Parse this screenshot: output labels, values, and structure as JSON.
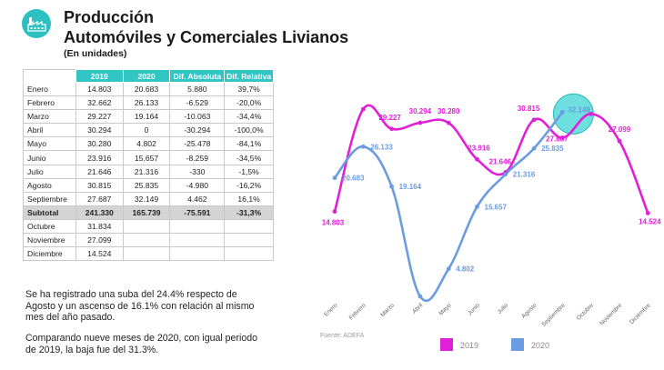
{
  "header": {
    "title_line1": "Producción",
    "title_line2": "Automóviles y Comerciales Livianos",
    "subtitle": "(En unidades)",
    "logo_icon": "factory-icon",
    "accent_color": "#2cc1c1"
  },
  "table": {
    "columns": [
      "",
      "2019",
      "2020",
      "Dif. Absoluta",
      "Dif. Relativa"
    ],
    "rows": [
      [
        "Enero",
        "14.803",
        "20.683",
        "5.880",
        "39,7%"
      ],
      [
        "Febrero",
        "32.662",
        "26.133",
        "-6.529",
        "-20,0%"
      ],
      [
        "Marzo",
        "29.227",
        "19.164",
        "-10.063",
        "-34,4%"
      ],
      [
        "Abril",
        "30.294",
        "0",
        "-30.294",
        "-100,0%"
      ],
      [
        "Mayo",
        "30.280",
        "4.802",
        "-25.478",
        "-84,1%"
      ],
      [
        "Junio",
        "23.916",
        "15.657",
        "-8.259",
        "-34,5%"
      ],
      [
        "Julio",
        "21.646",
        "21.316",
        "-330",
        "-1,5%"
      ],
      [
        "Agosto",
        "30.815",
        "25.835",
        "-4.980",
        "-16,2%"
      ],
      [
        "Septiembre",
        "27.687",
        "32.149",
        "4.462",
        "16,1%"
      ],
      [
        "Subtotal",
        "241.330",
        "165.739",
        "-75.591",
        "-31,3%"
      ],
      [
        "Octubre",
        "31.834",
        "",
        "",
        ""
      ],
      [
        "Noviembre",
        "27.099",
        "",
        "",
        ""
      ],
      [
        "Diciembre",
        "14.524",
        "",
        "",
        ""
      ]
    ],
    "subtotal_row_index": 9
  },
  "notes": {
    "paragraph1": "Se ha registrado una suba del 24.4% respecto de Agosto y un ascenso de 16.1% con relación al mismo mes del año pasado.",
    "paragraph2": "Comparando nueve meses de 2020, con igual periodo de 2019, la baja fue del 31.3%."
  },
  "chart_data": {
    "type": "line",
    "x": [
      "Enero",
      "Febrero",
      "Marzo",
      "Abril",
      "Mayo",
      "Junio",
      "Julio",
      "Agosto",
      "Septiembre",
      "Octubre",
      "Noviembre",
      "Diciembre"
    ],
    "series": [
      {
        "name": "2019",
        "color": "#e020d8",
        "values": [
          14803,
          32662,
          29227,
          30294,
          30280,
          23916,
          21646,
          30815,
          27687,
          31834,
          27099,
          14524
        ],
        "labels": [
          "14.803",
          "",
          "29.227",
          "30.294",
          "30.280",
          "23.916",
          "21.646",
          "30.815",
          "27.687",
          "",
          "27.099",
          "14.524"
        ]
      },
      {
        "name": "2020",
        "color": "#6b9be0",
        "values": [
          20683,
          26133,
          19164,
          0,
          4802,
          15657,
          21316,
          25835,
          32149,
          null,
          null,
          null
        ],
        "labels": [
          "20.683",
          "26.133",
          "19.164",
          "",
          "4.802",
          "15.657",
          "21.316",
          "25.835",
          "32.149",
          "",
          "",
          ""
        ]
      }
    ],
    "source": "Fuente: ADEFA",
    "legend_position": "bottom",
    "highlight": {
      "month": "Septiembre",
      "color": "#3fd3d3"
    },
    "grid": false
  }
}
